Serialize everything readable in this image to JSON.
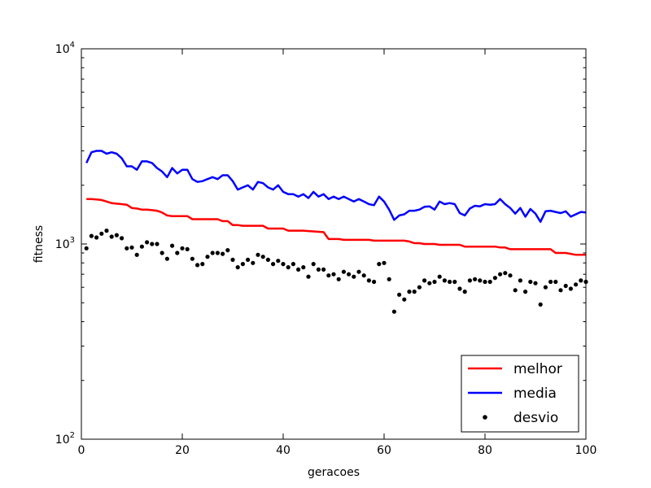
{
  "chart_data": {
    "type": "line",
    "title": "",
    "xlabel": "geracoes",
    "ylabel": "fitness",
    "xlim": [
      0,
      100
    ],
    "ylim": [
      100,
      10000
    ],
    "yscale": "log",
    "grid": false,
    "legend_position": "bottom-right",
    "xticks": [
      0,
      20,
      40,
      60,
      80,
      100
    ],
    "xtick_labels": [
      "0",
      "20",
      "40",
      "60",
      "80",
      "100"
    ],
    "yticks": [
      100,
      1000,
      10000
    ],
    "ytick_labels": [
      {
        "base": "10",
        "exp": "2"
      },
      {
        "base": "10",
        "exp": "3"
      },
      {
        "base": "10",
        "exp": "4"
      }
    ],
    "series": [
      {
        "name": "melhor",
        "style": "line",
        "color": "#ff0000",
        "x": [
          1,
          2,
          3,
          4,
          5,
          6,
          7,
          8,
          9,
          10,
          11,
          12,
          13,
          14,
          15,
          16,
          17,
          18,
          19,
          20,
          21,
          22,
          23,
          24,
          25,
          26,
          27,
          28,
          29,
          30,
          31,
          32,
          33,
          34,
          35,
          36,
          37,
          38,
          39,
          40,
          41,
          42,
          43,
          44,
          45,
          46,
          47,
          48,
          49,
          50,
          51,
          52,
          53,
          54,
          55,
          56,
          57,
          58,
          59,
          60,
          61,
          62,
          63,
          64,
          65,
          66,
          67,
          68,
          69,
          70,
          71,
          72,
          73,
          74,
          75,
          76,
          77,
          78,
          79,
          80,
          81,
          82,
          83,
          84,
          85,
          86,
          87,
          88,
          89,
          90,
          91,
          92,
          93,
          94,
          95,
          96,
          97,
          98,
          99,
          100
        ],
        "y": [
          1700,
          1700,
          1690,
          1680,
          1650,
          1620,
          1610,
          1600,
          1590,
          1530,
          1520,
          1500,
          1500,
          1490,
          1480,
          1450,
          1400,
          1390,
          1390,
          1390,
          1390,
          1340,
          1340,
          1340,
          1340,
          1340,
          1340,
          1310,
          1310,
          1250,
          1250,
          1240,
          1240,
          1240,
          1240,
          1240,
          1200,
          1200,
          1200,
          1200,
          1170,
          1170,
          1170,
          1170,
          1165,
          1160,
          1155,
          1150,
          1060,
          1060,
          1060,
          1050,
          1050,
          1050,
          1050,
          1050,
          1050,
          1040,
          1040,
          1040,
          1040,
          1040,
          1040,
          1040,
          1030,
          1010,
          1010,
          1000,
          1000,
          1000,
          990,
          990,
          990,
          990,
          990,
          970,
          970,
          970,
          970,
          970,
          970,
          970,
          960,
          960,
          940,
          940,
          940,
          940,
          940,
          940,
          940,
          940,
          940,
          900,
          900,
          900,
          890,
          880,
          880,
          880
        ]
      },
      {
        "name": "media",
        "style": "line",
        "color": "#0000ff",
        "x": [
          1,
          2,
          3,
          4,
          5,
          6,
          7,
          8,
          9,
          10,
          11,
          12,
          13,
          14,
          15,
          16,
          17,
          18,
          19,
          20,
          21,
          22,
          23,
          24,
          25,
          26,
          27,
          28,
          29,
          30,
          31,
          32,
          33,
          34,
          35,
          36,
          37,
          38,
          39,
          40,
          41,
          42,
          43,
          44,
          45,
          46,
          47,
          48,
          49,
          50,
          51,
          52,
          53,
          54,
          55,
          56,
          57,
          58,
          59,
          60,
          61,
          62,
          63,
          64,
          65,
          66,
          67,
          68,
          69,
          70,
          71,
          72,
          73,
          74,
          75,
          76,
          77,
          78,
          79,
          80,
          81,
          82,
          83,
          84,
          85,
          86,
          87,
          88,
          89,
          90,
          91,
          92,
          93,
          94,
          95,
          96,
          97,
          98,
          99,
          100
        ],
        "y": [
          2600,
          2950,
          3000,
          3000,
          2900,
          2950,
          2900,
          2750,
          2500,
          2500,
          2400,
          2650,
          2650,
          2600,
          2450,
          2350,
          2200,
          2450,
          2300,
          2400,
          2400,
          2150,
          2080,
          2100,
          2150,
          2200,
          2150,
          2250,
          2250,
          2100,
          1900,
          1950,
          2000,
          1900,
          2080,
          2050,
          1950,
          1900,
          2000,
          1850,
          1800,
          1800,
          1750,
          1800,
          1720,
          1850,
          1750,
          1800,
          1700,
          1750,
          1700,
          1750,
          1700,
          1650,
          1700,
          1650,
          1600,
          1580,
          1750,
          1650,
          1500,
          1330,
          1400,
          1420,
          1480,
          1480,
          1500,
          1550,
          1560,
          1500,
          1650,
          1600,
          1620,
          1600,
          1440,
          1400,
          1520,
          1570,
          1560,
          1600,
          1590,
          1600,
          1700,
          1600,
          1530,
          1430,
          1530,
          1380,
          1510,
          1430,
          1300,
          1470,
          1480,
          1460,
          1440,
          1470,
          1380,
          1420,
          1460,
          1450
        ]
      },
      {
        "name": "desvio",
        "style": "scatter",
        "color": "#000000",
        "x": [
          1,
          2,
          3,
          4,
          5,
          6,
          7,
          8,
          9,
          10,
          11,
          12,
          13,
          14,
          15,
          16,
          17,
          18,
          19,
          20,
          21,
          22,
          23,
          24,
          25,
          26,
          27,
          28,
          29,
          30,
          31,
          32,
          33,
          34,
          35,
          36,
          37,
          38,
          39,
          40,
          41,
          42,
          43,
          44,
          45,
          46,
          47,
          48,
          49,
          50,
          51,
          52,
          53,
          54,
          55,
          56,
          57,
          58,
          59,
          60,
          61,
          62,
          63,
          64,
          65,
          66,
          67,
          68,
          69,
          70,
          71,
          72,
          73,
          74,
          75,
          76,
          77,
          78,
          79,
          80,
          81,
          82,
          83,
          84,
          85,
          86,
          87,
          88,
          89,
          90,
          91,
          92,
          93,
          94,
          95,
          96,
          97,
          98,
          99,
          100
        ],
        "y": [
          950,
          1100,
          1080,
          1130,
          1170,
          1090,
          1110,
          1070,
          950,
          960,
          880,
          970,
          1020,
          1000,
          1000,
          900,
          840,
          980,
          900,
          950,
          940,
          840,
          780,
          790,
          860,
          900,
          900,
          890,
          930,
          830,
          760,
          790,
          830,
          800,
          880,
          860,
          830,
          790,
          820,
          790,
          760,
          790,
          740,
          760,
          680,
          790,
          740,
          740,
          690,
          700,
          660,
          720,
          700,
          680,
          720,
          690,
          650,
          640,
          790,
          800,
          660,
          450,
          550,
          520,
          570,
          570,
          600,
          650,
          630,
          640,
          680,
          650,
          640,
          640,
          590,
          570,
          650,
          660,
          650,
          640,
          640,
          670,
          700,
          710,
          690,
          580,
          650,
          570,
          640,
          630,
          490,
          600,
          640,
          640,
          580,
          610,
          590,
          620,
          650,
          640
        ]
      }
    ]
  }
}
